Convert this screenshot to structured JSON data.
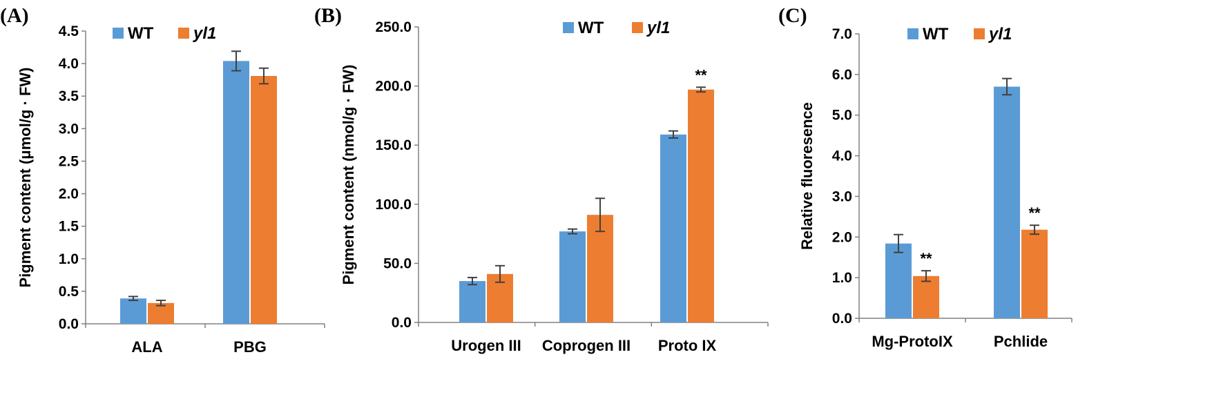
{
  "colors": {
    "WT": "#5b9bd5",
    "yl1": "#ed7d31",
    "axis": "#808080",
    "error": "#404040"
  },
  "legend": [
    {
      "name": "WT",
      "italic": false
    },
    {
      "name": "yl1",
      "italic": true
    }
  ],
  "chart_data": [
    {
      "type": "bar",
      "panel": "(A)",
      "categories": [
        "ALA",
        "PBG"
      ],
      "ylabel": "Pigment content (μmol/g · FW)",
      "ylim": [
        0,
        4.5
      ],
      "yticks": [
        0.0,
        0.5,
        1.0,
        1.5,
        2.0,
        2.5,
        3.0,
        3.5,
        4.0,
        4.5
      ],
      "ytick_labels": [
        "0.0",
        "0.5",
        "1.0",
        "1.5",
        "2.0",
        "2.5",
        "3.0",
        "3.5",
        "4.0",
        "4.5"
      ],
      "series": [
        {
          "name": "WT",
          "values": [
            0.39,
            4.04
          ],
          "errors": [
            0.03,
            0.15
          ],
          "significance": [
            "",
            ""
          ]
        },
        {
          "name": "yl1",
          "values": [
            0.32,
            3.81
          ],
          "errors": [
            0.04,
            0.12
          ],
          "significance": [
            "",
            ""
          ]
        }
      ]
    },
    {
      "type": "bar",
      "panel": "(B)",
      "categories": [
        "Urogen III",
        "Coprogen III",
        "Proto IX"
      ],
      "ylabel": "Pigment content (nmol/g · FW)",
      "ylim": [
        0,
        250
      ],
      "yticks": [
        0,
        50,
        100,
        150,
        200,
        250
      ],
      "ytick_labels": [
        "0.0",
        "50.0",
        "100.0",
        "150.0",
        "200.0",
        "250.0"
      ],
      "series": [
        {
          "name": "WT",
          "values": [
            35,
            77,
            159
          ],
          "errors": [
            3,
            2,
            3
          ],
          "significance": [
            "",
            "",
            ""
          ]
        },
        {
          "name": "yl1",
          "values": [
            41,
            91,
            197
          ],
          "errors": [
            7,
            14,
            2
          ],
          "significance": [
            "",
            "",
            "**"
          ]
        }
      ]
    },
    {
      "type": "bar",
      "panel": "(C)",
      "categories": [
        "Mg-ProtoIX",
        "Pchlide"
      ],
      "ylabel": "Relative fluoresence",
      "ylim": [
        0,
        7
      ],
      "yticks": [
        0,
        1,
        2,
        3,
        4,
        5,
        6,
        7
      ],
      "ytick_labels": [
        "0.0",
        "1.0",
        "2.0",
        "3.0",
        "4.0",
        "5.0",
        "6.0",
        "7.0"
      ],
      "series": [
        {
          "name": "WT",
          "values": [
            1.84,
            5.7
          ],
          "errors": [
            0.22,
            0.2
          ],
          "significance": [
            "",
            ""
          ]
        },
        {
          "name": "yl1",
          "values": [
            1.04,
            2.18
          ],
          "errors": [
            0.13,
            0.11
          ],
          "significance": [
            "**",
            "**"
          ]
        }
      ]
    }
  ]
}
